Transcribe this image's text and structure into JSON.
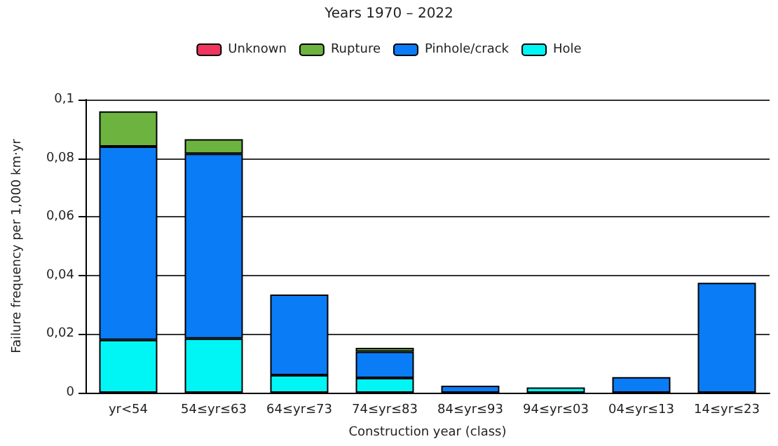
{
  "chart_data": {
    "type": "bar",
    "title": "Years 1970 – 2022",
    "xlabel": "Construction year (class)",
    "ylabel": "Failure frequency per 1,000 km·yr",
    "categories": [
      "yr<54",
      "54≤yr≤63",
      "64≤yr≤73",
      "74≤yr≤83",
      "84≤yr≤93",
      "94≤yr≤03",
      "04≤yr≤13",
      "14≤yr≤23"
    ],
    "stacked": true,
    "series": [
      {
        "name": "Hole",
        "color": "#00f5f5",
        "values": [
          0.018,
          0.0185,
          0.006,
          0.005,
          null,
          0.0018,
          null,
          null
        ]
      },
      {
        "name": "Pinhole/crack",
        "color": "#0a7cf6",
        "values": [
          0.066,
          0.063,
          0.0275,
          0.009,
          0.0024,
          null,
          0.0053,
          0.0375
        ]
      },
      {
        "name": "Rupture",
        "color": "#6db33f",
        "values": [
          0.012,
          0.005,
          null,
          0.0013,
          null,
          null,
          null,
          null
        ]
      },
      {
        "name": "Unknown",
        "color": "#f0365e",
        "values": [
          null,
          null,
          null,
          null,
          null,
          null,
          null,
          null
        ]
      }
    ],
    "ylim": [
      0,
      0.1
    ],
    "yticks": [
      0,
      {
        "value": 0.02,
        "label": "0,02"
      },
      {
        "value": 0.04,
        "label": "0,04"
      },
      {
        "value": 0.06,
        "label": "0,06"
      },
      {
        "value": 0.08,
        "label": "0,08"
      },
      {
        "value": 0.1,
        "label": "0,1"
      }
    ],
    "grid": "y",
    "legend": "top"
  }
}
